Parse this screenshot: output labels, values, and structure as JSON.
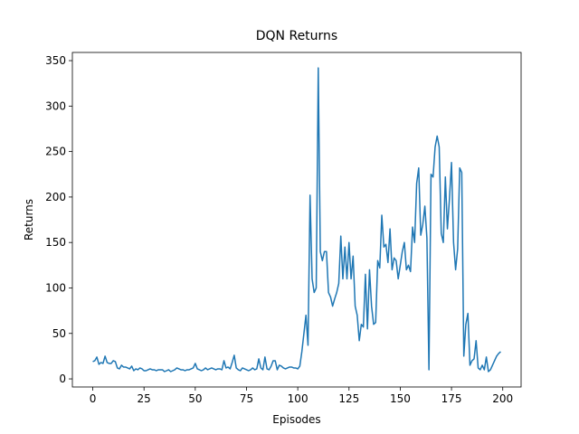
{
  "chart_data": {
    "type": "line",
    "title": "DQN Returns",
    "x_label": "Episodes",
    "y_label": "Returns",
    "x": [
      0,
      1,
      2,
      3,
      4,
      5,
      6,
      7,
      8,
      9,
      10,
      11,
      12,
      13,
      14,
      15,
      16,
      17,
      18,
      19,
      20,
      21,
      22,
      23,
      24,
      25,
      26,
      27,
      28,
      29,
      30,
      31,
      32,
      33,
      34,
      35,
      36,
      37,
      38,
      39,
      40,
      41,
      42,
      43,
      44,
      45,
      46,
      47,
      48,
      49,
      50,
      51,
      52,
      53,
      54,
      55,
      56,
      57,
      58,
      59,
      60,
      61,
      62,
      63,
      64,
      65,
      66,
      67,
      68,
      69,
      70,
      71,
      72,
      73,
      74,
      75,
      76,
      77,
      78,
      79,
      80,
      81,
      82,
      83,
      84,
      85,
      86,
      87,
      88,
      89,
      90,
      91,
      92,
      93,
      94,
      95,
      96,
      97,
      98,
      99,
      100,
      101,
      102,
      103,
      104,
      105,
      106,
      107,
      108,
      109,
      110,
      111,
      112,
      113,
      114,
      115,
      116,
      117,
      118,
      119,
      120,
      121,
      122,
      123,
      124,
      125,
      126,
      127,
      128,
      129,
      130,
      131,
      132,
      133,
      134,
      135,
      136,
      137,
      138,
      139,
      140,
      141,
      142,
      143,
      144,
      145,
      146,
      147,
      148,
      149,
      150,
      151,
      152,
      153,
      154,
      155,
      156,
      157,
      158,
      159,
      160,
      161,
      162,
      163,
      164,
      165,
      166,
      167,
      168,
      169,
      170,
      171,
      172,
      173,
      174,
      175,
      176,
      177,
      178,
      179,
      180,
      181,
      182,
      183,
      184,
      185,
      186,
      187,
      188,
      189,
      190,
      191,
      192,
      193,
      194,
      195,
      196,
      197,
      198,
      199
    ],
    "series": [
      {
        "name": "DQN",
        "color": "#1f77b4",
        "values": [
          19,
          20,
          24,
          16,
          18,
          17,
          25,
          18,
          17,
          17,
          20,
          19,
          12,
          11,
          15,
          13,
          13,
          12,
          11,
          14,
          9,
          11,
          10,
          12,
          11,
          9,
          9,
          10,
          11,
          10,
          10,
          9,
          10,
          10,
          10,
          8,
          9,
          10,
          8,
          9,
          10,
          12,
          11,
          10,
          10,
          9,
          10,
          10,
          11,
          12,
          17,
          11,
          10,
          9,
          10,
          12,
          10,
          11,
          12,
          11,
          10,
          11,
          11,
          10,
          20,
          12,
          13,
          11,
          18,
          26,
          12,
          10,
          9,
          12,
          11,
          10,
          9,
          10,
          12,
          10,
          11,
          22,
          12,
          10,
          24,
          11,
          10,
          14,
          20,
          20,
          10,
          15,
          14,
          12,
          11,
          12,
          13,
          13,
          12,
          12,
          11,
          14,
          30,
          50,
          70,
          37,
          202,
          110,
          95,
          100,
          342,
          140,
          130,
          140,
          140,
          95,
          90,
          80,
          88,
          95,
          105,
          157,
          110,
          145,
          110,
          150,
          110,
          135,
          80,
          70,
          42,
          60,
          57,
          115,
          55,
          120,
          80,
          60,
          62,
          130,
          122,
          180,
          145,
          148,
          128,
          165,
          120,
          133,
          130,
          110,
          125,
          140,
          150,
          120,
          125,
          118,
          167,
          150,
          215,
          232,
          158,
          170,
          190,
          155,
          10,
          225,
          222,
          255,
          267,
          255,
          160,
          150,
          222,
          165,
          198,
          238,
          150,
          120,
          143,
          232,
          227,
          25,
          60,
          72,
          15,
          20,
          22,
          42,
          12,
          10,
          15,
          10,
          24,
          8,
          10,
          15,
          20,
          25,
          28,
          30
        ]
      }
    ],
    "xlim": [
      -9.95,
      208.95
    ],
    "ylim": [
      -8.9,
      359
    ],
    "xticks": [
      0,
      25,
      50,
      75,
      100,
      125,
      150,
      175,
      200
    ],
    "yticks": [
      0,
      50,
      100,
      150,
      200,
      250,
      300,
      350
    ]
  }
}
